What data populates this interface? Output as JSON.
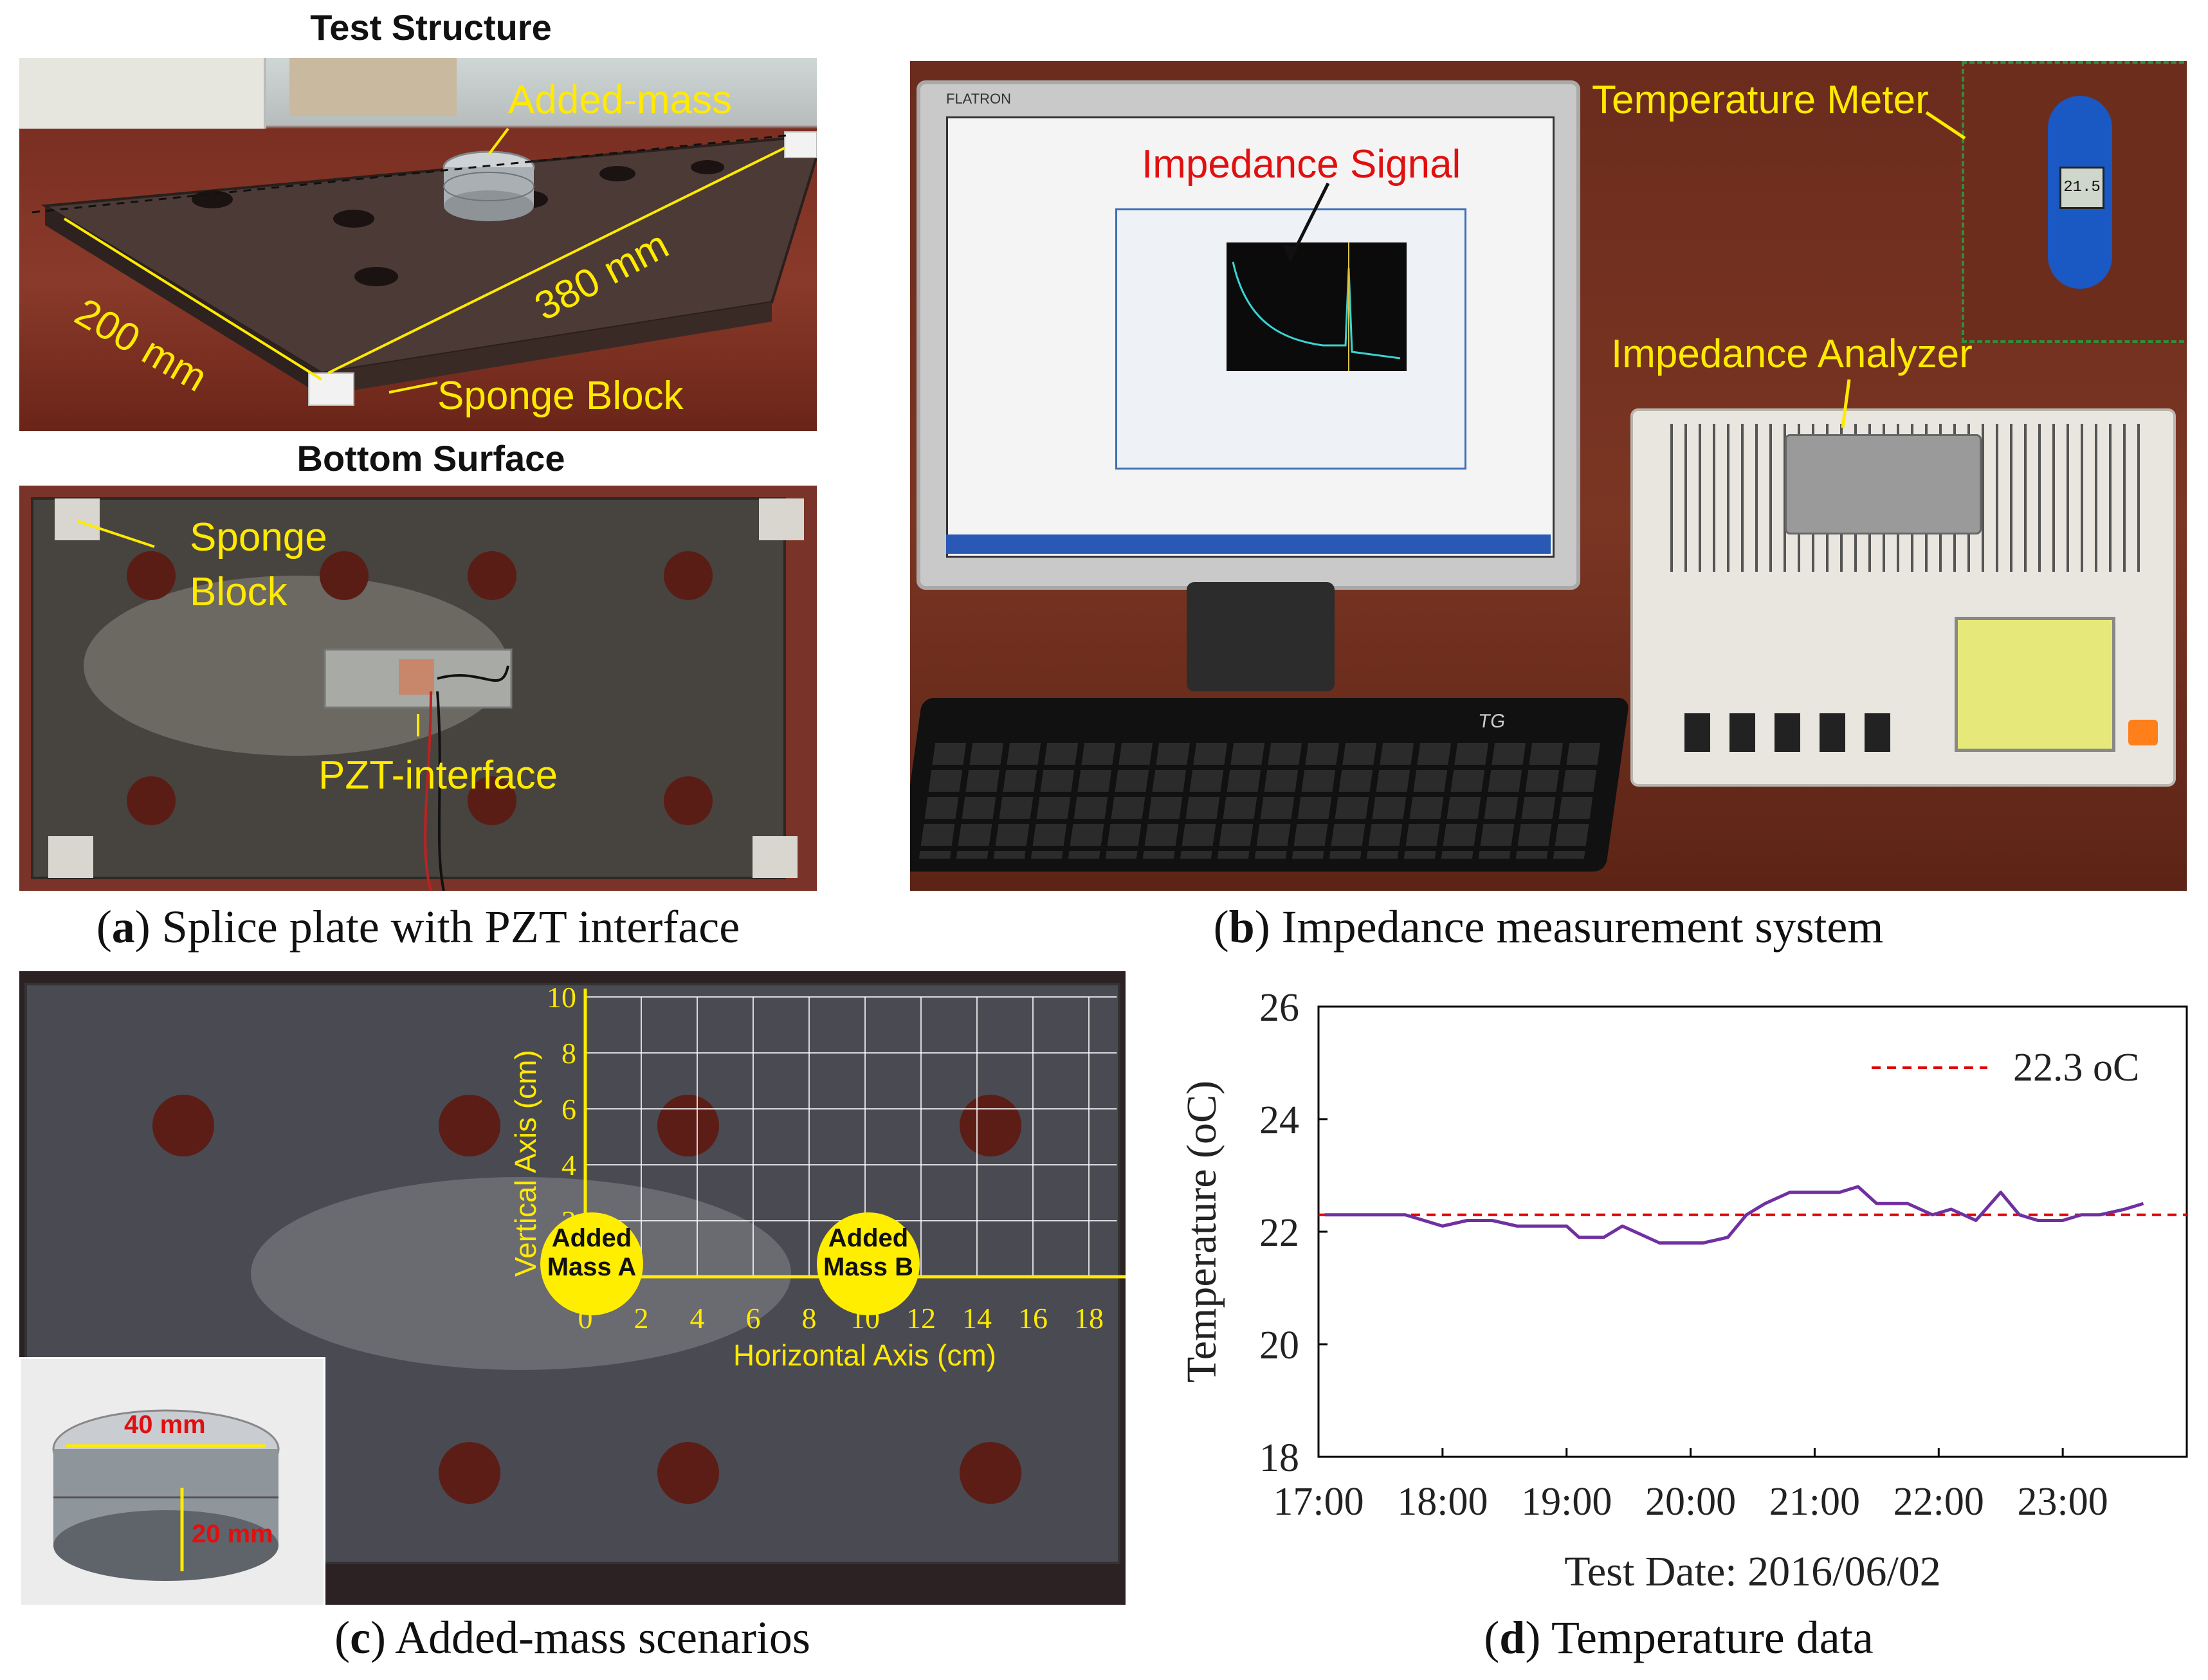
{
  "panel_a": {
    "title_top": "Test Structure",
    "title_bottom": "Bottom Surface",
    "labels": {
      "added_mass": "Added-mass",
      "dim_200": "200 mm",
      "dim_380": "380 mm",
      "sponge_block_top": "Sponge Block",
      "sponge_block_bottom_1": "Sponge",
      "sponge_block_bottom_2": "Block",
      "pzt_interface": "PZT-interface"
    },
    "caption_letter": "a",
    "caption_text": "Splice plate with PZT interface"
  },
  "panel_b": {
    "labels": {
      "impedance_signal": "Impedance Signal",
      "temperature_meter": "Temperature Meter",
      "impedance_analyzer": "Impedance Analyzer",
      "monitor_brand": "FLATRON",
      "keyboard_brand": "TG",
      "meter_reading": "21.5"
    },
    "caption_letter": "b",
    "caption_text": "Impedance measurement system"
  },
  "panel_c": {
    "grid": {
      "x_ticks": [
        "0",
        "2",
        "4",
        "6",
        "8",
        "10",
        "12",
        "14",
        "16",
        "18"
      ],
      "y_ticks": [
        "2",
        "4",
        "6",
        "8",
        "10"
      ],
      "x_label": "Horizontal Axis (cm)",
      "y_label": "Vertical Axis (cm)"
    },
    "mass_a": [
      "Added",
      "Mass A"
    ],
    "mass_b": [
      "Added",
      "Mass B"
    ],
    "inset": {
      "diameter": "40 mm",
      "height": "20 mm"
    },
    "caption_letter": "c",
    "caption_text": "Added-mass scenarios"
  },
  "panel_d": {
    "caption_letter": "d",
    "caption_text": "Temperature data"
  },
  "colors": {
    "annotation_yellow": "#ffea00",
    "series_purple": "#7030a0",
    "reference_red": "#e00000",
    "plate_steel": "#4a4a52",
    "desk_wood": "#7a2f22"
  },
  "chart_data": {
    "type": "line",
    "title": "",
    "xlabel": "Test Date: 2016/06/02",
    "ylabel": "Temperature (oC)",
    "x_tick_labels": [
      "17:00",
      "18:00",
      "19:00",
      "20:00",
      "21:00",
      "22:00",
      "23:00"
    ],
    "x_unit": "hours",
    "xlim": [
      17.0,
      24.0
    ],
    "ylim": [
      18,
      26
    ],
    "y_ticks": [
      18,
      20,
      22,
      24,
      26
    ],
    "grid": false,
    "legend": {
      "label": "22.3 oC",
      "placement": "top-right"
    },
    "reference_line": {
      "y": 22.3,
      "style": "dashed",
      "color": "#e00000"
    },
    "series": [
      {
        "color": "#7030a0",
        "x": [
          17.05,
          17.3,
          17.5,
          17.7,
          17.85,
          18.0,
          18.2,
          18.4,
          18.6,
          18.8,
          19.0,
          19.1,
          19.3,
          19.45,
          19.55,
          19.75,
          19.95,
          20.1,
          20.3,
          20.45,
          20.6,
          20.8,
          21.0,
          21.2,
          21.35,
          21.5,
          21.75,
          21.95,
          22.1,
          22.3,
          22.5,
          22.65,
          22.8,
          23.0,
          23.15,
          23.3,
          23.5,
          23.65
        ],
        "y": [
          22.3,
          22.3,
          22.3,
          22.3,
          22.2,
          22.1,
          22.2,
          22.2,
          22.1,
          22.1,
          22.1,
          21.9,
          21.9,
          22.1,
          22.0,
          21.8,
          21.8,
          21.8,
          21.9,
          22.3,
          22.5,
          22.7,
          22.7,
          22.7,
          22.8,
          22.5,
          22.5,
          22.3,
          22.4,
          22.2,
          22.7,
          22.3,
          22.2,
          22.2,
          22.3,
          22.3,
          22.4,
          22.5
        ]
      }
    ]
  }
}
